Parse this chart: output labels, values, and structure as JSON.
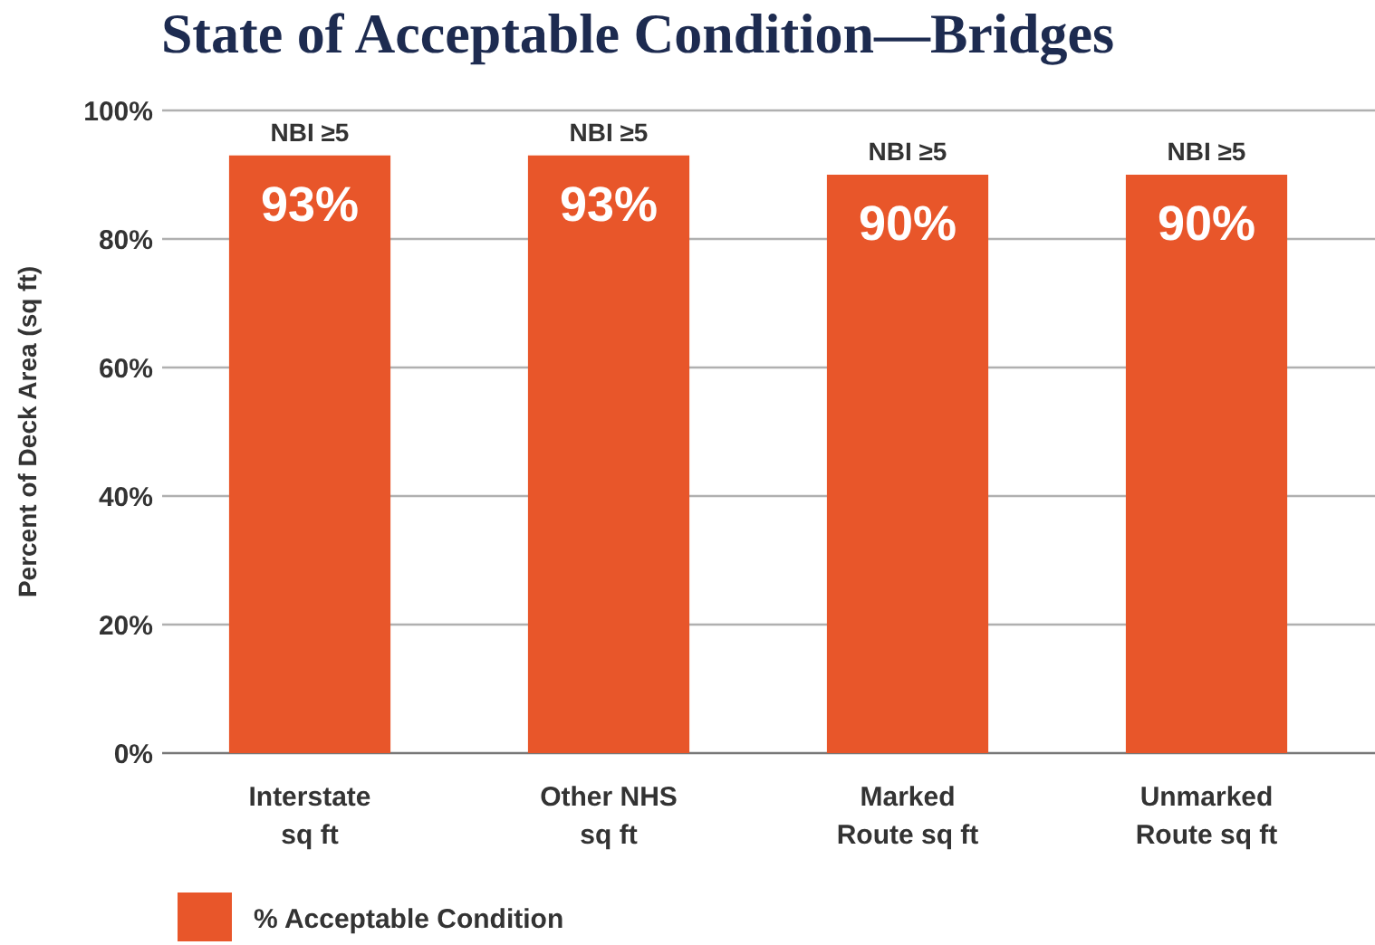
{
  "chart_data": {
    "type": "bar",
    "title": "State of Acceptable Condition—Bridges",
    "ylabel": "Percent of Deck Area (sq ft)",
    "categories": [
      "Interstate\nsq ft",
      "Other NHS\nsq ft",
      "Marked\nRoute sq ft",
      "Unmarked\nRoute sq ft"
    ],
    "series": [
      {
        "name": "% Acceptable Condition",
        "color": "#e8562a",
        "values": [
          93,
          93,
          90,
          90
        ],
        "value_labels": [
          "93%",
          "93%",
          "90%",
          "90%"
        ]
      }
    ],
    "ylim": [
      0,
      100
    ],
    "yticks": [
      {
        "value": 0,
        "label": "0%"
      },
      {
        "value": 20,
        "label": "20%"
      },
      {
        "value": 40,
        "label": "40%"
      },
      {
        "value": 60,
        "label": "60%"
      },
      {
        "value": 80,
        "label": "80%"
      },
      {
        "value": 100,
        "label": "100%"
      }
    ],
    "grid": "y",
    "legend": "bottom left",
    "annotations": [
      {
        "text": "NBI ≥5",
        "x": "Interstate\nsq ft",
        "y": 93
      },
      {
        "text": "NBI ≥5",
        "x": "Other NHS\nsq ft",
        "y": 93
      },
      {
        "text": "NBI ≥5",
        "x": "Marked\nRoute sq ft",
        "y": 90
      },
      {
        "text": "NBI ≥5",
        "x": "Unmarked\nRoute sq ft",
        "y": 90
      }
    ]
  }
}
